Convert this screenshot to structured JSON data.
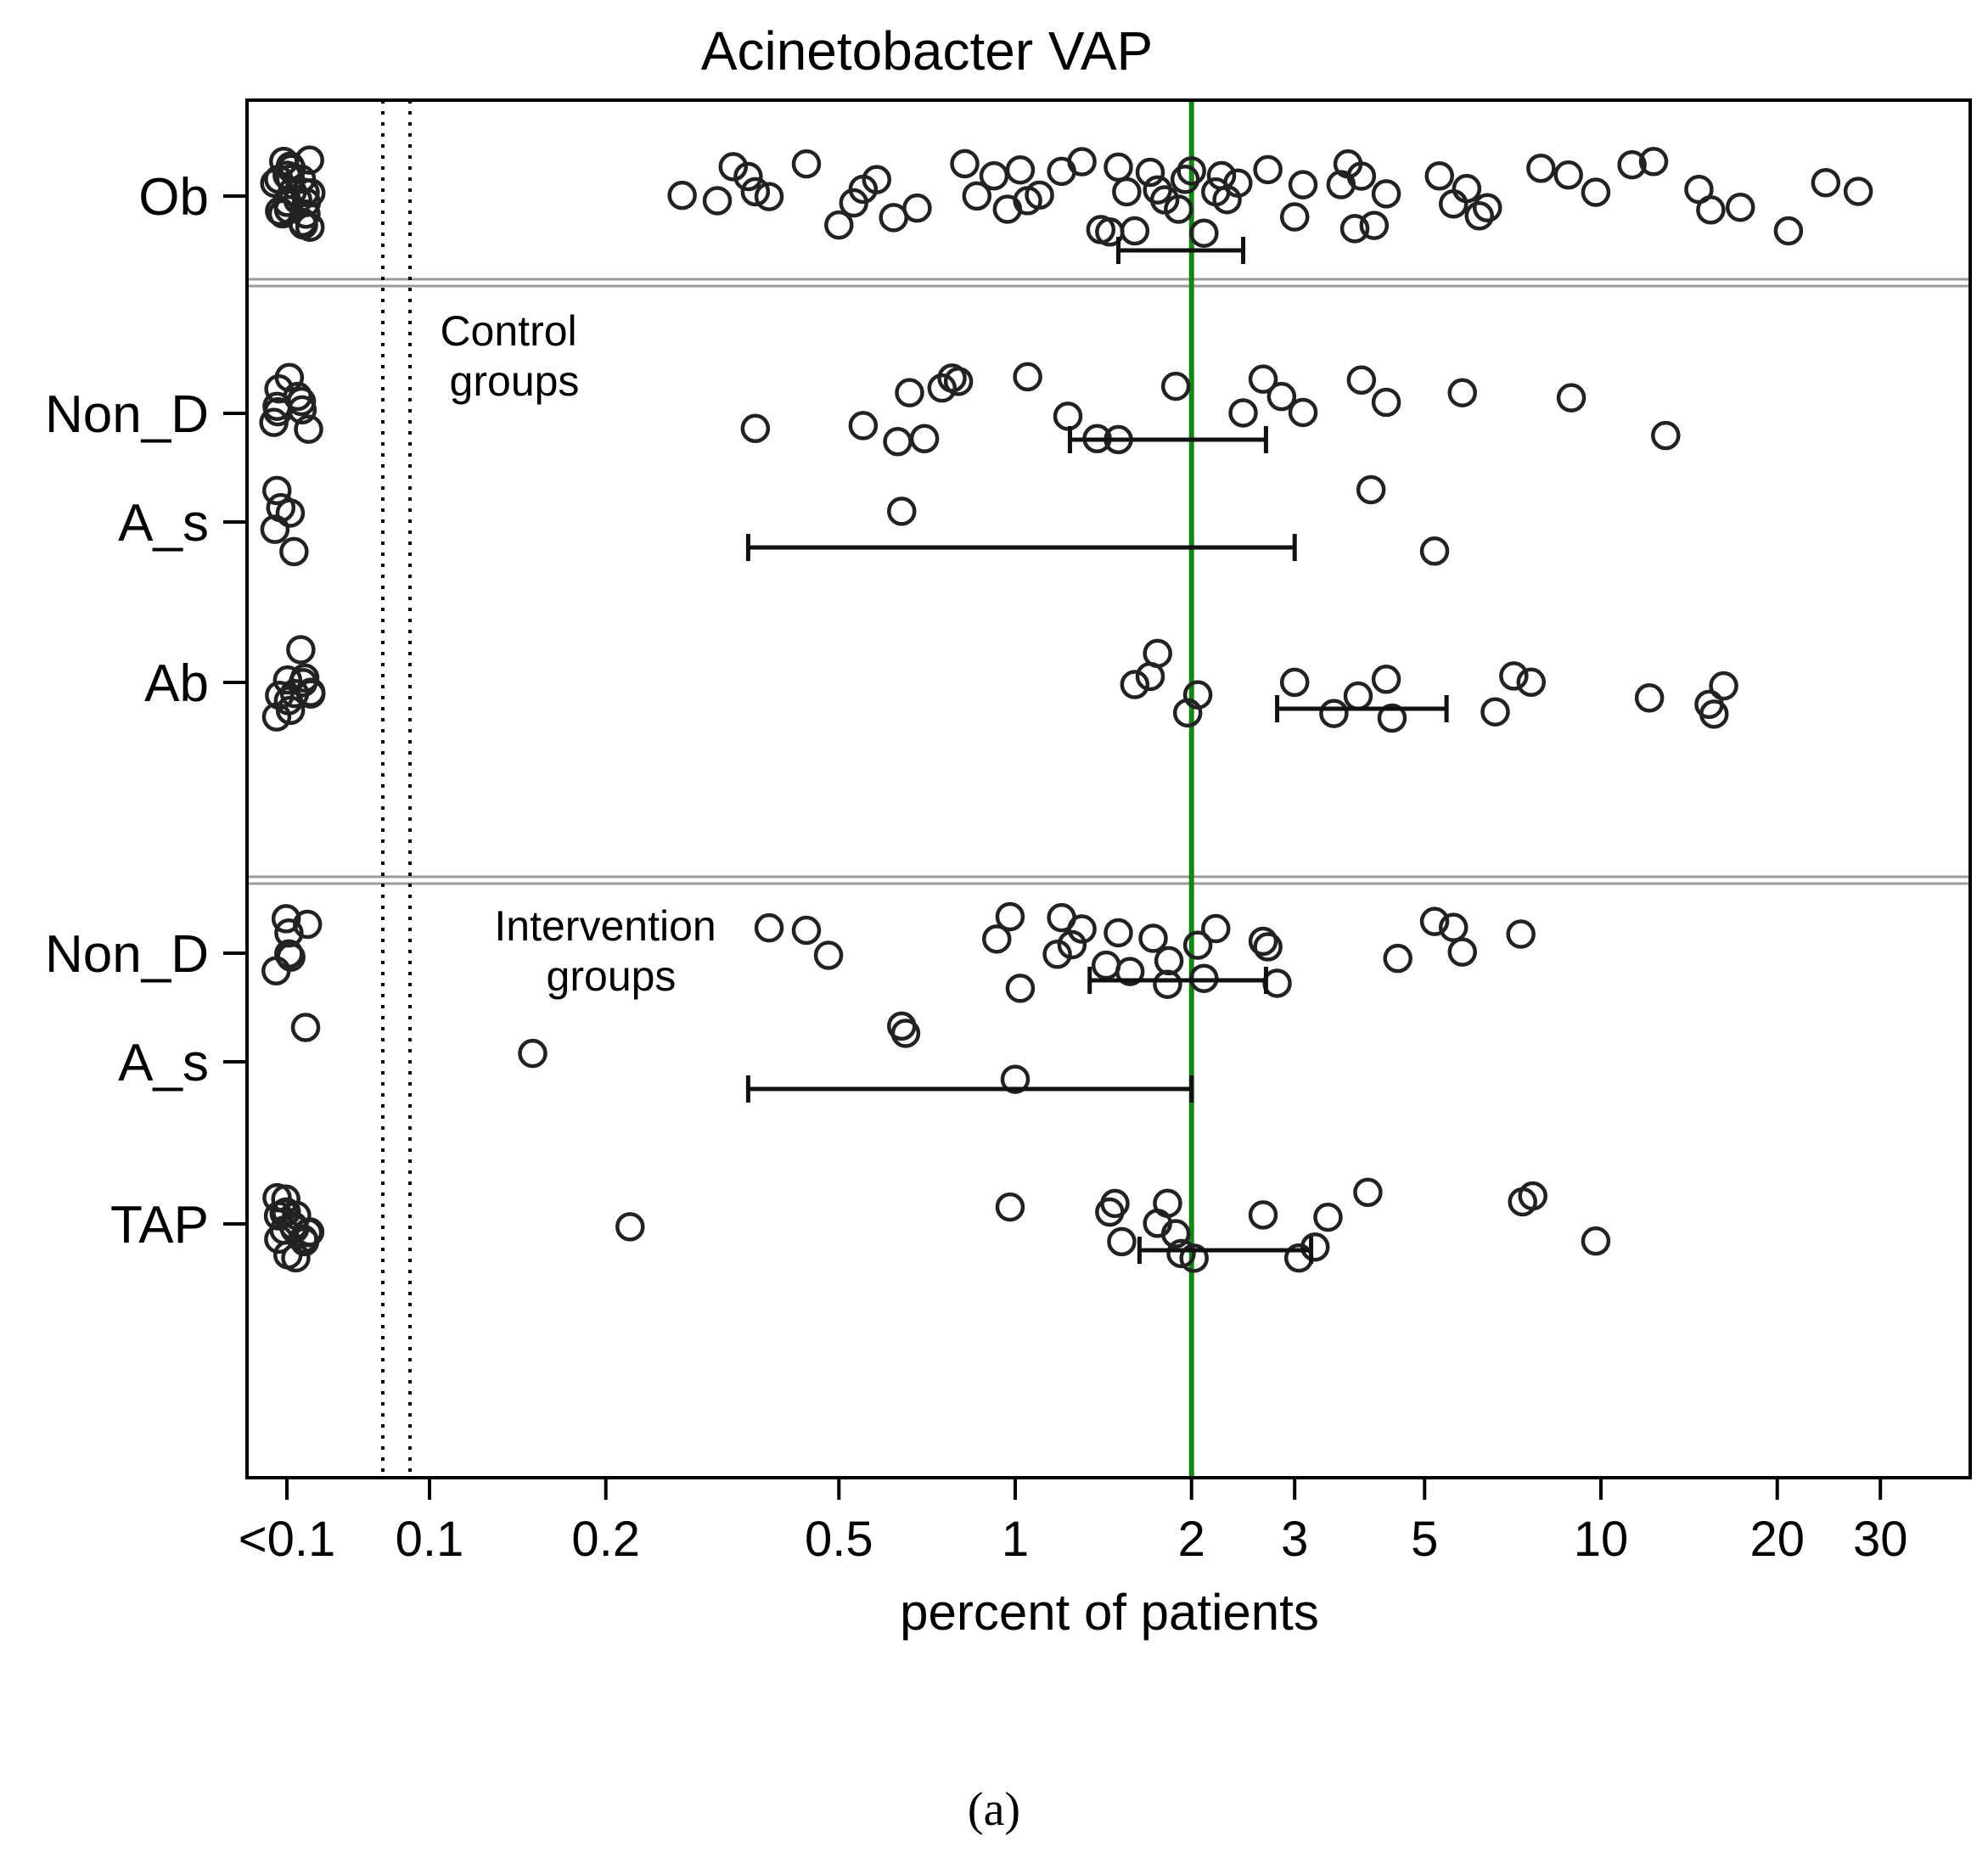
{
  "caption": "(a)",
  "colors": {
    "axis": "#000000",
    "reference_line": "#148414",
    "separator": "#9a9a9a",
    "marker": "#222222"
  },
  "chart_data": {
    "type": "scatter",
    "title": "Acinetobacter VAP",
    "xlabel": "percent of patients",
    "ylabel": "",
    "x_scale": "log",
    "xlim": [
      0.07,
      33
    ],
    "x_ticks": [
      {
        "label": "<0.1",
        "below_detection": true
      },
      {
        "label": "0.1",
        "value": 0.1
      },
      {
        "label": "0.2",
        "value": 0.2
      },
      {
        "label": "0.5",
        "value": 0.5
      },
      {
        "label": "1",
        "value": 1
      },
      {
        "label": "2",
        "value": 2
      },
      {
        "label": "3",
        "value": 3
      },
      {
        "label": "5",
        "value": 5
      },
      {
        "label": "10",
        "value": 10
      },
      {
        "label": "20",
        "value": 20
      },
      {
        "label": "30",
        "value": 30
      }
    ],
    "reference_line": {
      "x": 2,
      "color": "#148414"
    },
    "group_labels": [
      "Control\ngroups",
      "Intervention\ngroups"
    ],
    "rows": [
      {
        "label": "Ob",
        "panel": "observational",
        "below_detection_count": 22,
        "values": [
          0.27,
          0.31,
          0.33,
          0.35,
          0.36,
          0.38,
          0.44,
          0.5,
          0.53,
          0.55,
          0.58,
          0.62,
          0.68,
          0.82,
          0.86,
          0.92,
          0.97,
          1.02,
          1.05,
          1.1,
          1.2,
          1.3,
          1.4,
          1.45,
          1.5,
          1.55,
          1.6,
          1.7,
          1.75,
          1.8,
          1.9,
          1.95,
          2.0,
          2.1,
          2.2,
          2.25,
          2.3,
          2.4,
          2.7,
          3.0,
          3.1,
          3.6,
          3.7,
          3.8,
          3.9,
          4.1,
          4.3,
          5.3,
          5.6,
          5.9,
          6.2,
          6.4,
          7.9,
          8.8,
          9.8,
          11.3,
          12.3,
          14.7,
          15.4,
          17.3,
          20.9,
          24.2,
          27.5
        ],
        "ci": [
          1.5,
          2.45
        ]
      },
      {
        "label": "Non_D",
        "panel": "control",
        "below_detection_count": 9,
        "values": [
          0.36,
          0.55,
          0.63,
          0.66,
          0.7,
          0.75,
          0.78,
          0.8,
          1.05,
          1.23,
          1.38,
          1.5,
          1.88,
          2.45,
          2.65,
          2.85,
          3.1,
          3.9,
          4.3,
          5.8,
          8.9,
          12.9
        ],
        "ci": [
          1.24,
          2.68
        ]
      },
      {
        "label": "A_s",
        "panel": "control",
        "below_detection_count": 5,
        "values": [
          0.64,
          4.05,
          5.2
        ],
        "ci": [
          0.35,
          3.0
        ]
      },
      {
        "label": "Ab",
        "panel": "control",
        "below_detection_count": 11,
        "values": [
          1.6,
          1.7,
          1.75,
          1.97,
          2.05,
          3.0,
          3.5,
          3.85,
          4.3,
          4.4,
          6.6,
          7.1,
          7.6,
          12.1,
          15.3,
          15.6,
          16.2
        ],
        "ci": [
          2.8,
          5.45
        ]
      },
      {
        "label": "Non_D",
        "panel": "intervention",
        "below_detection_count": 6,
        "values": [
          0.38,
          0.44,
          0.48,
          0.93,
          0.98,
          1.02,
          1.18,
          1.2,
          1.25,
          1.3,
          1.43,
          1.5,
          1.57,
          1.72,
          1.82,
          1.83,
          2.05,
          2.1,
          2.2,
          2.65,
          2.7,
          2.8,
          4.5,
          5.2,
          5.6,
          5.8,
          7.3
        ],
        "ci": [
          1.34,
          2.68
        ]
      },
      {
        "label": "A_s",
        "panel": "intervention",
        "below_detection_count": 1,
        "values": [
          0.15,
          0.64,
          0.65,
          1.0
        ],
        "ci": [
          0.35,
          2.0
        ]
      },
      {
        "label": "TAP",
        "panel": "intervention",
        "below_detection_count": 16,
        "values": [
          0.22,
          0.98,
          1.45,
          1.48,
          1.52,
          1.75,
          1.82,
          1.88,
          1.92,
          2.02,
          2.65,
          3.05,
          3.25,
          3.42,
          4.0,
          7.35,
          7.65,
          9.8
        ],
        "ci": [
          1.63,
          3.2
        ]
      }
    ]
  }
}
